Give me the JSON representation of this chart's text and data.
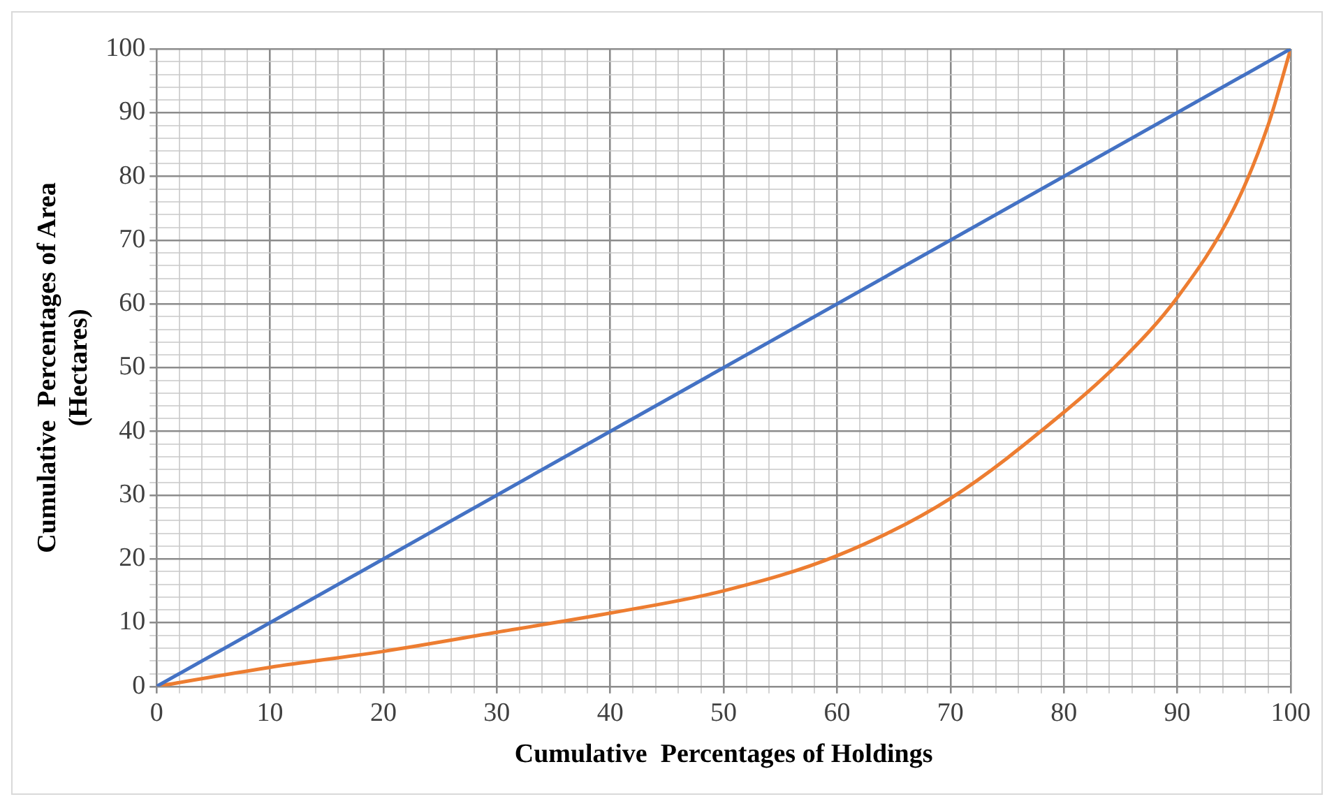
{
  "chart_data": {
    "type": "line",
    "xlabel": "Cumulative  Percentages of Holdings",
    "ylabel": "Cumulative  Percentages of Area\n(Hectares)",
    "series": [
      {
        "color": "#4472c4",
        "x": [
          0,
          100
        ],
        "values": [
          0,
          100
        ]
      },
      {
        "color": "#ed7d31",
        "x": [
          0,
          10,
          20,
          30,
          40,
          50,
          60,
          70,
          80,
          85,
          90,
          95,
          98,
          100
        ],
        "values": [
          0,
          3,
          5.5,
          8.5,
          11.5,
          15,
          20.5,
          29.5,
          43,
          51,
          61,
          75,
          88,
          100
        ]
      }
    ],
    "xlim": [
      0,
      100
    ],
    "ylim": [
      0,
      100
    ],
    "xticks": [
      0,
      {
        "value": 2,
        "label": null
      },
      {
        "value": 4,
        "label": null
      },
      {
        "value": 6,
        "label": null
      },
      {
        "value": 8,
        "label": null
      },
      10,
      {
        "value": 12,
        "label": null
      },
      {
        "value": 14,
        "label": null
      },
      {
        "value": 16,
        "label": null
      },
      {
        "value": 18,
        "label": null
      },
      20,
      {
        "value": 22,
        "label": null
      },
      {
        "value": 24,
        "label": null
      },
      {
        "value": 26,
        "label": null
      },
      {
        "value": 28,
        "label": null
      },
      30,
      {
        "value": 32,
        "label": null
      },
      {
        "value": 34,
        "label": null
      },
      {
        "value": 36,
        "label": null
      },
      {
        "value": 38,
        "label": null
      },
      40,
      {
        "value": 42,
        "label": null
      },
      {
        "value": 44,
        "label": null
      },
      {
        "value": 46,
        "label": null
      },
      {
        "value": 48,
        "label": null
      },
      50,
      {
        "value": 52,
        "label": null
      },
      {
        "value": 54,
        "label": null
      },
      {
        "value": 56,
        "label": null
      },
      {
        "value": 58,
        "label": null
      },
      60,
      {
        "value": 62,
        "label": null
      },
      {
        "value": 64,
        "label": null
      },
      {
        "value": 66,
        "label": null
      },
      {
        "value": 68,
        "label": null
      },
      70,
      {
        "value": 72,
        "label": null
      },
      {
        "value": 74,
        "label": null
      },
      {
        "value": 76,
        "label": null
      },
      {
        "value": 78,
        "label": null
      },
      80,
      {
        "value": 82,
        "label": null
      },
      {
        "value": 84,
        "label": null
      },
      {
        "value": 86,
        "label": null
      },
      {
        "value": 88,
        "label": null
      },
      90,
      {
        "value": 92,
        "label": null
      },
      {
        "value": 94,
        "label": null
      },
      {
        "value": 96,
        "label": null
      },
      {
        "value": 98,
        "label": null
      },
      100
    ],
    "yticks": [
      0,
      {
        "value": 2,
        "label": null
      },
      {
        "value": 4,
        "label": null
      },
      {
        "value": 6,
        "label": null
      },
      {
        "value": 8,
        "label": null
      },
      10,
      {
        "value": 12,
        "label": null
      },
      {
        "value": 14,
        "label": null
      },
      {
        "value": 16,
        "label": null
      },
      {
        "value": 18,
        "label": null
      },
      20,
      {
        "value": 22,
        "label": null
      },
      {
        "value": 24,
        "label": null
      },
      {
        "value": 26,
        "label": null
      },
      {
        "value": 28,
        "label": null
      },
      30,
      {
        "value": 32,
        "label": null
      },
      {
        "value": 34,
        "label": null
      },
      {
        "value": 36,
        "label": null
      },
      {
        "value": 38,
        "label": null
      },
      40,
      {
        "value": 42,
        "label": null
      },
      {
        "value": 44,
        "label": null
      },
      {
        "value": 46,
        "label": null
      },
      {
        "value": 48,
        "label": null
      },
      50,
      {
        "value": 52,
        "label": null
      },
      {
        "value": 54,
        "label": null
      },
      {
        "value": 56,
        "label": null
      },
      {
        "value": 58,
        "label": null
      },
      60,
      {
        "value": 62,
        "label": null
      },
      {
        "value": 64,
        "label": null
      },
      {
        "value": 66,
        "label": null
      },
      {
        "value": 68,
        "label": null
      },
      70,
      {
        "value": 72,
        "label": null
      },
      {
        "value": 74,
        "label": null
      },
      {
        "value": 76,
        "label": null
      },
      {
        "value": 78,
        "label": null
      },
      80,
      {
        "value": 82,
        "label": null
      },
      {
        "value": 84,
        "label": null
      },
      {
        "value": 86,
        "label": null
      },
      {
        "value": 88,
        "label": null
      },
      90,
      {
        "value": 92,
        "label": null
      },
      {
        "value": 94,
        "label": null
      },
      {
        "value": 96,
        "label": null
      },
      {
        "value": 98,
        "label": null
      },
      100
    ],
    "grid": true,
    "legend": false,
    "marker": "none",
    "line_style": "solid"
  }
}
